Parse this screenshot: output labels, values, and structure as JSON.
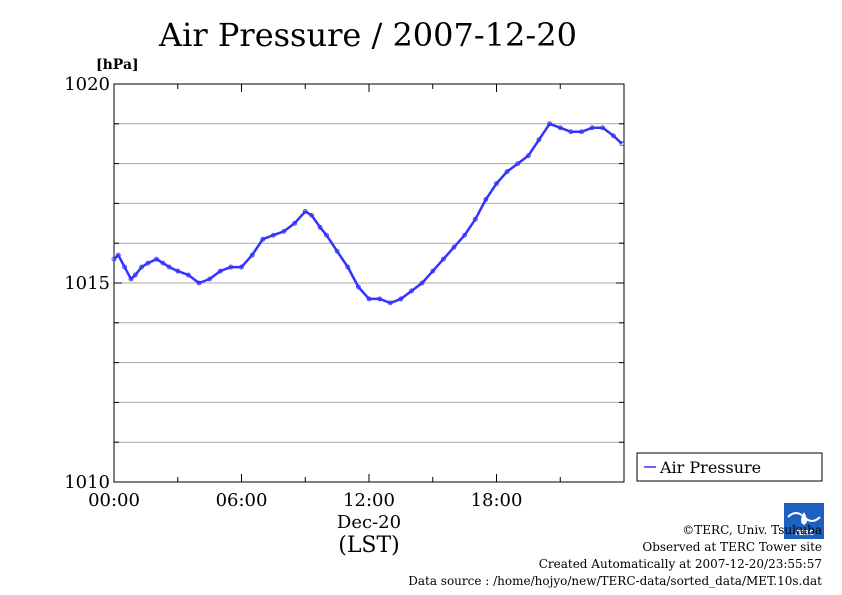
{
  "title": "Air Pressure / 2007-12-20",
  "chart_data": {
    "type": "line",
    "title": "Air Pressure / 2007-12-20",
    "ylabel": "[hPa]",
    "xlabel_date": "Dec-20",
    "xlabel_tz": "(LST)",
    "xlim_hours": [
      0,
      24
    ],
    "ylim": [
      1010,
      1020
    ],
    "x_ticks": [
      {
        "hour": 0,
        "label": "00:00"
      },
      {
        "hour": 6,
        "label": "06:00"
      },
      {
        "hour": 12,
        "label": "12:00"
      },
      {
        "hour": 18,
        "label": "18:00"
      }
    ],
    "y_ticks": [
      {
        "value": 1010,
        "label": "1010"
      },
      {
        "value": 1015,
        "label": "1015"
      },
      {
        "value": 1020,
        "label": "1020"
      }
    ],
    "y_gridlines": [
      1011,
      1012,
      1013,
      1014,
      1015,
      1016,
      1017,
      1018,
      1019
    ],
    "grid": true,
    "legend_position": "right",
    "series": [
      {
        "name": "Air Pressure",
        "color": "#3333ff",
        "x_hours": [
          0,
          0.2,
          0.5,
          0.8,
          1.0,
          1.3,
          1.6,
          2.0,
          2.3,
          2.6,
          3.0,
          3.5,
          4.0,
          4.5,
          5.0,
          5.5,
          6.0,
          6.5,
          7.0,
          7.5,
          8.0,
          8.5,
          9.0,
          9.3,
          9.7,
          10.0,
          10.5,
          11.0,
          11.5,
          12.0,
          12.5,
          13.0,
          13.5,
          14.0,
          14.5,
          15.0,
          15.5,
          16.0,
          16.5,
          17.0,
          17.5,
          18.0,
          18.5,
          19.0,
          19.5,
          20.0,
          20.5,
          21.0,
          21.5,
          22.0,
          22.5,
          23.0,
          23.5,
          23.9
        ],
        "values": [
          1015.6,
          1015.7,
          1015.4,
          1015.1,
          1015.2,
          1015.4,
          1015.5,
          1015.6,
          1015.5,
          1015.4,
          1015.3,
          1015.2,
          1015.0,
          1015.1,
          1015.3,
          1015.4,
          1015.4,
          1015.7,
          1016.1,
          1016.2,
          1016.3,
          1016.5,
          1016.8,
          1016.7,
          1016.4,
          1016.2,
          1015.8,
          1015.4,
          1014.9,
          1014.6,
          1014.6,
          1014.5,
          1014.6,
          1014.8,
          1015.0,
          1015.3,
          1015.6,
          1015.9,
          1016.2,
          1016.6,
          1017.1,
          1017.5,
          1017.8,
          1018.0,
          1018.2,
          1018.6,
          1019.0,
          1018.9,
          1018.8,
          1018.8,
          1018.9,
          1018.9,
          1018.7,
          1018.5
        ]
      }
    ]
  },
  "legend": {
    "label": "Air Pressure"
  },
  "footer": {
    "copyright": "©TERC, Univ. Tsukuba",
    "observed": "Observed at TERC Tower site",
    "created": "Created Automatically at 2007-12-20/23:55:57",
    "source": "Data source : /home/hojyo/new/TERC-data/sorted_data/MET.10s.dat"
  },
  "logo": {
    "text": "TERC",
    "color": "#1f5fbf"
  }
}
